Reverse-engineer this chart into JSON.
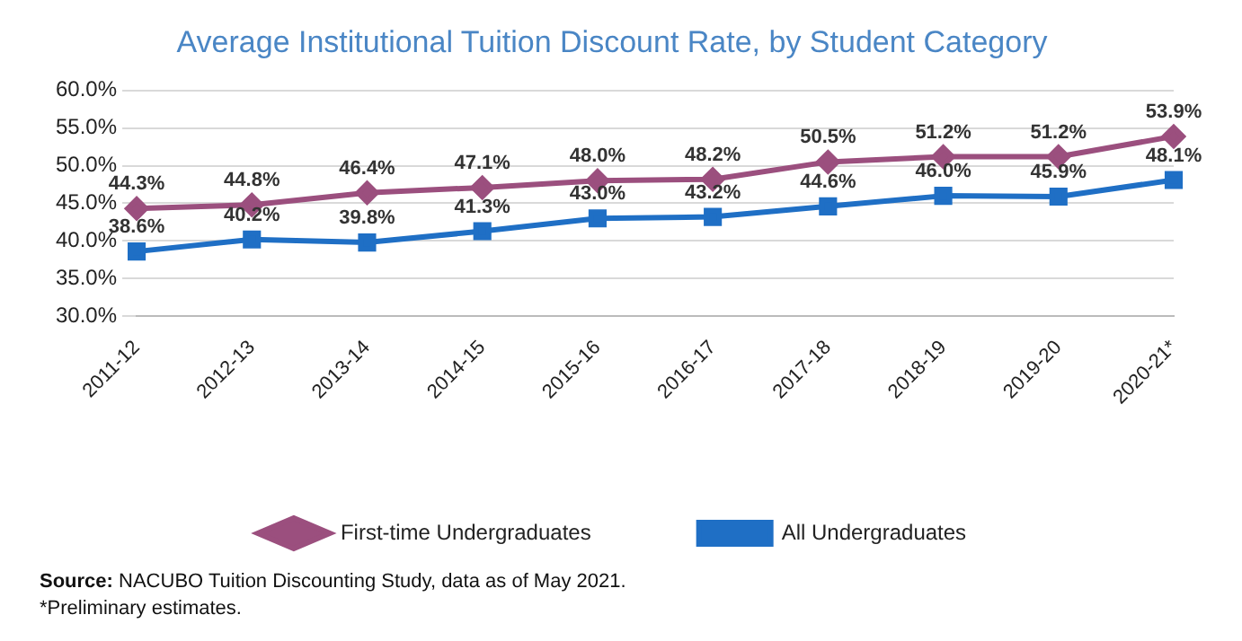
{
  "chart_data": {
    "type": "line",
    "title": "Average Institutional Tuition Discount Rate, by Student Category",
    "categories": [
      "2011-12",
      "2012-13",
      "2013-14",
      "2014-15",
      "2015-16",
      "2016-17",
      "2017-18",
      "2018-19",
      "2019-20",
      "2020-21*"
    ],
    "series": [
      {
        "name": "First-time Undergraduates",
        "color": "#9b4f7e",
        "marker": "diamond",
        "values": [
          44.3,
          44.8,
          46.4,
          47.1,
          48.0,
          48.2,
          50.5,
          51.2,
          51.2,
          53.9
        ],
        "value_labels": [
          "44.3%",
          "44.8%",
          "46.4%",
          "47.1%",
          "48.0%",
          "48.2%",
          "50.5%",
          "51.2%",
          "51.2%",
          "53.9%"
        ]
      },
      {
        "name": "All Undergraduates",
        "color": "#1f6fc5",
        "marker": "square",
        "values": [
          38.6,
          40.2,
          39.8,
          41.3,
          43.0,
          43.2,
          44.6,
          46.0,
          45.9,
          48.1
        ],
        "value_labels": [
          "38.6%",
          "40.2%",
          "39.8%",
          "41.3%",
          "43.0%",
          "43.2%",
          "44.6%",
          "46.0%",
          "45.9%",
          "48.1%"
        ]
      }
    ],
    "ylim": [
      30,
      60
    ],
    "yticks": [
      {
        "value": 30,
        "label": "30.0%"
      },
      {
        "value": 35,
        "label": "35.0%"
      },
      {
        "value": 40,
        "label": "40.0%"
      },
      {
        "value": 45,
        "label": "45.0%"
      },
      {
        "value": 50,
        "label": "50.0%"
      },
      {
        "value": 55,
        "label": "55.0%"
      },
      {
        "value": 60,
        "label": "60.0%"
      }
    ],
    "grid": "y",
    "legend": "bottom",
    "line_style": "solid",
    "annotations": [
      "Source: NACUBO Tuition Discounting Study, data as of May 2021.",
      "*Preliminary estimates."
    ]
  }
}
